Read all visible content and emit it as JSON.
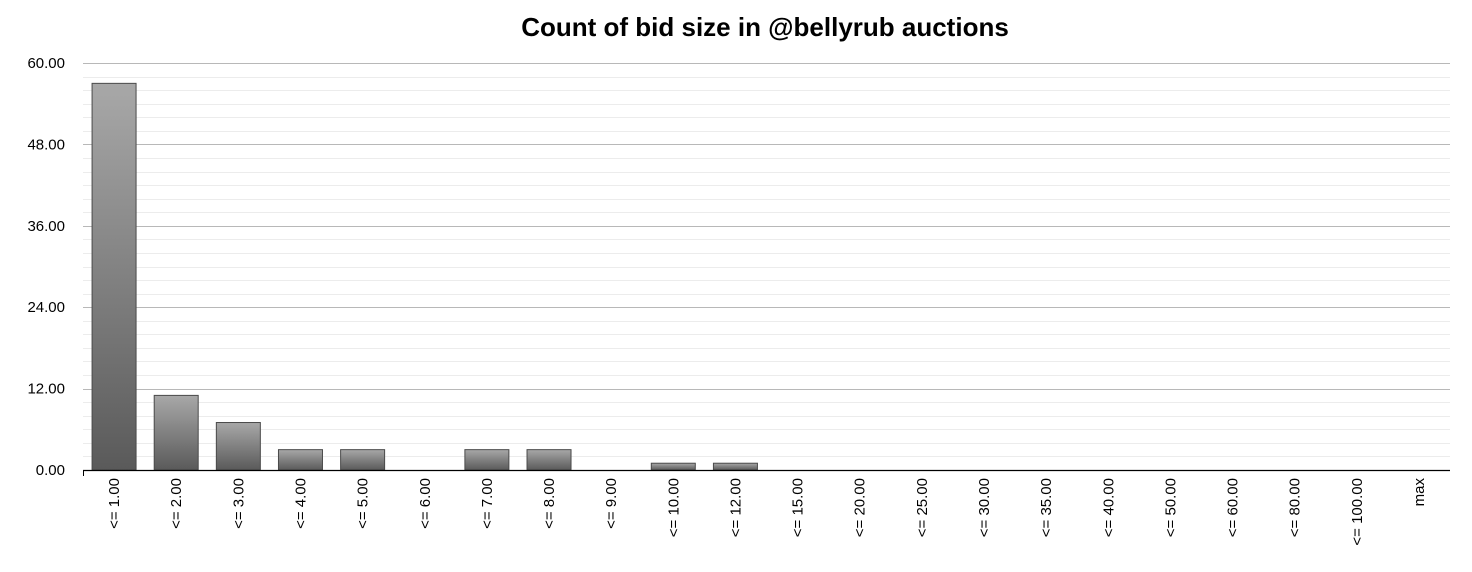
{
  "chart_data": {
    "type": "bar",
    "title": "Count of bid size in @bellyrub auctions",
    "xlabel": "",
    "ylabel": "",
    "categories": [
      "<= 1.00",
      "<= 2.00",
      "<= 3.00",
      "<= 4.00",
      "<= 5.00",
      "<= 6.00",
      "<= 7.00",
      "<= 8.00",
      "<= 9.00",
      "<= 10.00",
      "<= 12.00",
      "<= 15.00",
      "<= 20.00",
      "<= 25.00",
      "<= 30.00",
      "<= 35.00",
      "<= 40.00",
      "<= 50.00",
      "<= 60.00",
      "<= 80.00",
      "<= 100.00",
      "max"
    ],
    "values": [
      57,
      11,
      7,
      3,
      3,
      0,
      3,
      3,
      0,
      1,
      1,
      0,
      0,
      0,
      0,
      0,
      0,
      0,
      0,
      0,
      0,
      0
    ],
    "ylim": [
      0,
      60
    ],
    "yticks": [
      "0.00",
      "12.00",
      "24.00",
      "36.00",
      "48.00",
      "60.00"
    ],
    "grid": true,
    "colors": {
      "bar_top": "#a8a8a8",
      "bar_bottom": "#5a5a5a",
      "bar_edge": "#4a4a4a",
      "major_grid": "#b8b8b8",
      "minor_grid": "#ececec",
      "axis": "#000000"
    }
  }
}
